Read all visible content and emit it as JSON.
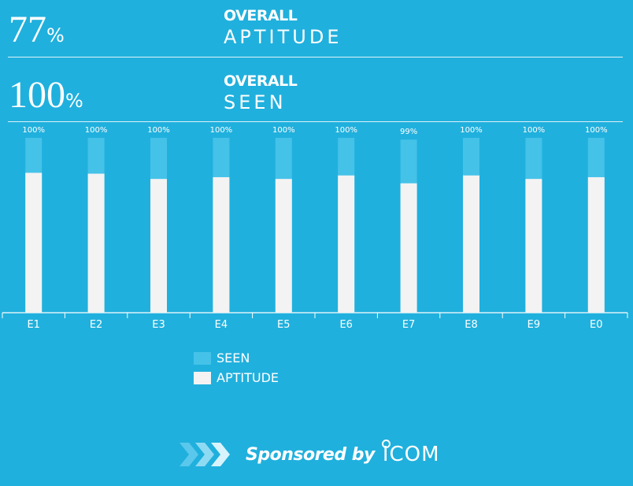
{
  "stats": [
    {
      "value": "77",
      "unit": "%",
      "label_top": "OVERALL",
      "label_bottom": "APTITUDE"
    },
    {
      "value": "100",
      "unit": "%",
      "label_top": "OVERALL",
      "label_bottom": "SEEN"
    }
  ],
  "colors": {
    "background": "#20b0dd",
    "seen": "#45c2e8",
    "aptitude": "#f3f3f3",
    "text": "#ffffff"
  },
  "chart_data": {
    "type": "bar",
    "categories": [
      "E1",
      "E2",
      "E3",
      "E4",
      "E5",
      "E6",
      "E7",
      "E8",
      "E9",
      "E0"
    ],
    "series": [
      {
        "name": "SEEN",
        "values": [
          100,
          100,
          100,
          100,
          100,
          100,
          99,
          100,
          100,
          100
        ]
      },
      {
        "name": "APTITUDE",
        "values": [
          80,
          79.5,
          76.5,
          77.5,
          76.5,
          78.5,
          74,
          78.5,
          76.5,
          77.5
        ]
      }
    ],
    "data_labels": [
      "100%",
      "100%",
      "100%",
      "100%",
      "100%",
      "100%",
      "99%",
      "100%",
      "100%",
      "100%"
    ],
    "ylim": [
      0,
      100
    ],
    "grid": false,
    "legend": "bottom"
  },
  "legend": [
    {
      "label": "SEEN"
    },
    {
      "label": "APTITUDE"
    }
  ],
  "sponsor": {
    "text": "Sponsored by",
    "brand": "ICOM"
  }
}
